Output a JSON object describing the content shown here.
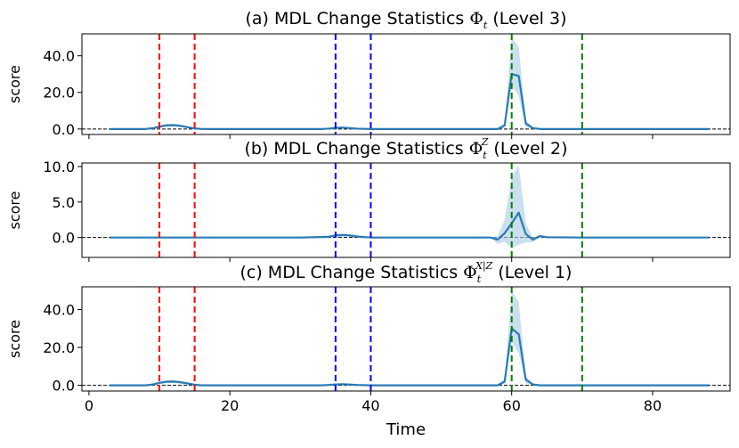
{
  "chart_data": [
    {
      "type": "line",
      "title": "(a) MDL Change Statistics Φ_t (Level 3)",
      "title_parts": {
        "prefix": "(a) MDL Change Statistics ",
        "symbol": "Φ",
        "sub": "t",
        "sup": "",
        "suffix": " (Level 3)"
      },
      "ylabel": "score",
      "xlabel": "",
      "ylim": [
        -3,
        52
      ],
      "xlim": [
        -1,
        91
      ],
      "yticks": [
        0.0,
        20.0,
        40.0
      ],
      "ytick_labels": [
        "0.0",
        "20.0",
        "40.0"
      ],
      "vlines": [
        {
          "x": 10,
          "color": "#ff0000"
        },
        {
          "x": 15,
          "color": "#ff0000"
        },
        {
          "x": 35,
          "color": "#0000ff"
        },
        {
          "x": 40,
          "color": "#0000ff"
        },
        {
          "x": 60,
          "color": "#008000"
        },
        {
          "x": 70,
          "color": "#008000"
        }
      ],
      "series": [
        {
          "name": "mean",
          "x": [
            3,
            8,
            9,
            10,
            11,
            12,
            13,
            14,
            15,
            16,
            30,
            33,
            34,
            35,
            36,
            37,
            38,
            40,
            45,
            58,
            59,
            60,
            61,
            62,
            63,
            64,
            70,
            80,
            88
          ],
          "values": [
            0,
            0,
            0.4,
            1.3,
            2.0,
            2.1,
            1.7,
            1.0,
            0.3,
            0,
            0,
            0,
            0.2,
            0.6,
            0.8,
            0.5,
            0.2,
            0,
            0,
            0,
            2.0,
            30.0,
            29.0,
            3.0,
            0.5,
            0,
            0,
            0,
            0
          ],
          "lower": [
            0,
            0,
            0,
            0.6,
            1.2,
            1.3,
            1.0,
            0.5,
            0.1,
            0,
            0,
            0,
            0.05,
            0.2,
            0.3,
            0.2,
            0,
            0,
            0,
            0,
            0.5,
            24.0,
            18.0,
            1.0,
            0.1,
            0,
            0,
            0,
            0
          ],
          "upper": [
            0,
            0,
            0.7,
            2.0,
            2.8,
            2.9,
            2.4,
            1.5,
            0.6,
            0,
            0,
            0,
            0.4,
            1.0,
            1.2,
            0.8,
            0.35,
            0,
            0,
            0,
            3.5,
            50.0,
            45.0,
            5.0,
            0.9,
            0,
            0,
            0,
            0
          ]
        }
      ]
    },
    {
      "type": "line",
      "title": "(b) MDL Change Statistics Φ_t^Z (Level 2)",
      "title_parts": {
        "prefix": "(b) MDL Change Statistics ",
        "symbol": "Φ",
        "sub": "t",
        "sup": "Z",
        "suffix": " (Level 2)"
      },
      "ylabel": "score",
      "xlabel": "",
      "ylim": [
        -2.8,
        10.5
      ],
      "xlim": [
        -1,
        91
      ],
      "yticks": [
        0.0,
        5.0,
        10.0
      ],
      "ytick_labels": [
        "0.0",
        "5.0",
        "10.0"
      ],
      "vlines": [
        {
          "x": 10,
          "color": "#ff0000"
        },
        {
          "x": 15,
          "color": "#ff0000"
        },
        {
          "x": 35,
          "color": "#0000ff"
        },
        {
          "x": 40,
          "color": "#0000ff"
        },
        {
          "x": 60,
          "color": "#008000"
        },
        {
          "x": 70,
          "color": "#008000"
        }
      ],
      "series": [
        {
          "name": "mean",
          "x": [
            3,
            10,
            15,
            30,
            34,
            35,
            36,
            37,
            38,
            40,
            45,
            57,
            58,
            59,
            60,
            61,
            62,
            63,
            64,
            65,
            70,
            88
          ],
          "values": [
            0,
            0,
            0,
            0,
            0.1,
            0.3,
            0.35,
            0.3,
            0.15,
            0,
            0,
            0,
            -0.3,
            0.6,
            2.0,
            3.5,
            0.5,
            -0.3,
            0.2,
            0.05,
            0,
            0
          ],
          "lower": [
            0,
            0,
            0,
            0,
            0.0,
            0.1,
            0.15,
            0.1,
            0.0,
            0,
            0,
            0,
            -0.9,
            -0.6,
            -1.5,
            -1.0,
            -0.7,
            -0.6,
            0.0,
            0,
            0,
            0
          ],
          "upper": [
            0,
            0,
            0,
            0,
            0.2,
            0.5,
            0.55,
            0.5,
            0.3,
            0,
            0,
            0,
            0.2,
            2.5,
            8.5,
            10.2,
            2.0,
            0.0,
            0.4,
            0.1,
            0,
            0
          ]
        }
      ]
    },
    {
      "type": "line",
      "title": "(c) MDL Change Statistics Φ_t^{X|Z} (Level 1)",
      "title_parts": {
        "prefix": "(c) MDL Change Statistics ",
        "symbol": "Φ",
        "sub": "t",
        "sup": "X|Z",
        "suffix": " (Level 1)"
      },
      "ylabel": "score",
      "xlabel": "Time",
      "ylim": [
        -3,
        52
      ],
      "xlim": [
        -1,
        91
      ],
      "yticks": [
        0.0,
        20.0,
        40.0
      ],
      "ytick_labels": [
        "0.0",
        "20.0",
        "40.0"
      ],
      "xticks": [
        0,
        20,
        40,
        60,
        80
      ],
      "xtick_labels": [
        "0",
        "20",
        "40",
        "60",
        "80"
      ],
      "vlines": [
        {
          "x": 10,
          "color": "#ff0000"
        },
        {
          "x": 15,
          "color": "#ff0000"
        },
        {
          "x": 35,
          "color": "#0000ff"
        },
        {
          "x": 40,
          "color": "#0000ff"
        },
        {
          "x": 60,
          "color": "#008000"
        },
        {
          "x": 70,
          "color": "#008000"
        }
      ],
      "series": [
        {
          "name": "mean",
          "x": [
            3,
            8,
            9,
            10,
            11,
            12,
            13,
            14,
            15,
            16,
            30,
            33,
            34,
            35,
            36,
            37,
            38,
            40,
            45,
            58,
            59,
            60,
            61,
            62,
            63,
            64,
            70,
            80,
            88
          ],
          "values": [
            0,
            0,
            0.4,
            1.3,
            1.9,
            2.0,
            1.6,
            1.0,
            0.3,
            0,
            0,
            0,
            0.2,
            0.5,
            0.6,
            0.4,
            0.2,
            0,
            0,
            0,
            2.0,
            30.0,
            27.0,
            3.0,
            0.5,
            0,
            0,
            0,
            0
          ],
          "lower": [
            0,
            0,
            0,
            0.6,
            1.1,
            1.2,
            0.9,
            0.5,
            0.1,
            0,
            0,
            0,
            0.05,
            0.2,
            0.25,
            0.15,
            0,
            0,
            0,
            0,
            0.5,
            23.0,
            17.0,
            1.0,
            0.1,
            0,
            0,
            0,
            0
          ],
          "upper": [
            0,
            0,
            0.7,
            2.0,
            2.7,
            2.8,
            2.3,
            1.5,
            0.6,
            0,
            0,
            0,
            0.4,
            0.9,
            1.0,
            0.7,
            0.35,
            0,
            0,
            0,
            3.5,
            50.0,
            44.0,
            5.0,
            0.9,
            0,
            0,
            0,
            0
          ]
        }
      ]
    }
  ],
  "colors": {
    "line": "#2a7ab5",
    "band": "#a9c9e3",
    "baseline": "#000000"
  }
}
